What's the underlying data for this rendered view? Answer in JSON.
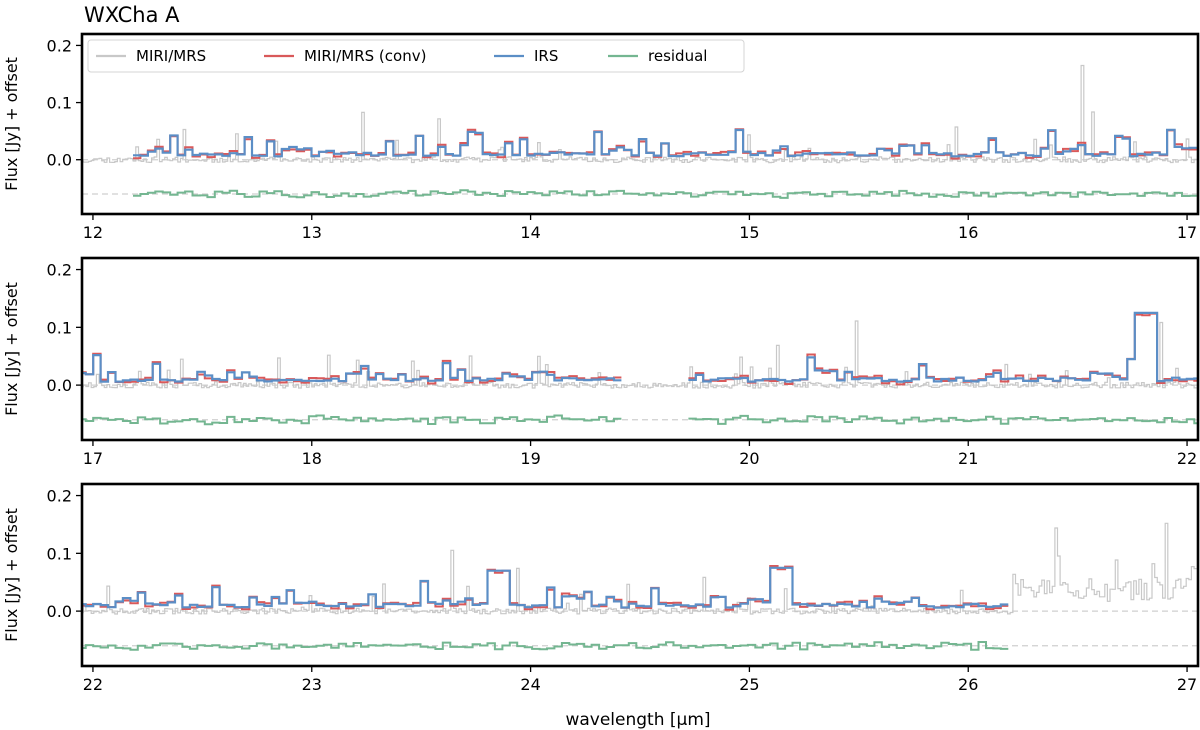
{
  "chart_data": {
    "type": "line",
    "title": "WXCha A",
    "xlabel": "wavelength [μm]",
    "ylabel": "Flux [Jy] + offset",
    "residual_offset": -0.06,
    "legend": {
      "placement": "top-left",
      "entries": [
        {
          "label": "MIRI/MRS",
          "color": "#c8c8c8"
        },
        {
          "label": "MIRI/MRS (conv)",
          "color": "#d9595a"
        },
        {
          "label": "IRS",
          "color": "#5b8ec6"
        },
        {
          "label": "residual",
          "color": "#74b691"
        }
      ]
    },
    "panels": [
      {
        "xlim": [
          11.95,
          17.05
        ],
        "ylim": [
          -0.095,
          0.22
        ],
        "xticks": [
          12,
          13,
          14,
          15,
          16,
          17
        ],
        "yticks": [
          0.0,
          0.1,
          0.2
        ],
        "ytick_labels": [
          "0.0",
          "0.1",
          "0.2"
        ],
        "miri_range": [
          11.95,
          17.05
        ],
        "irs_range": [
          12.2,
          17.05
        ],
        "gap": null,
        "seed": 11,
        "peak_x": [],
        "peak_y": []
      },
      {
        "xlim": [
          16.95,
          22.05
        ],
        "ylim": [
          -0.095,
          0.22
        ],
        "xticks": [
          17,
          18,
          19,
          20,
          21,
          22
        ],
        "yticks": [
          0.0,
          0.1,
          0.2
        ],
        "ytick_labels": [
          "0.0",
          "0.1",
          "0.2"
        ],
        "miri_range": [
          16.95,
          22.05
        ],
        "irs_range": [
          16.95,
          22.05
        ],
        "gap": [
          19.4,
          19.73
        ],
        "seed": 23,
        "peak_x": [
          21.82
        ],
        "peak_y": [
          0.125
        ]
      },
      {
        "xlim": [
          21.95,
          27.05
        ],
        "ylim": [
          -0.095,
          0.22
        ],
        "xticks": [
          22,
          23,
          24,
          25,
          26,
          27
        ],
        "yticks": [
          0.0,
          0.1,
          0.2
        ],
        "ytick_labels": [
          "0.0",
          "0.1",
          "0.2"
        ],
        "miri_range": [
          21.95,
          27.05
        ],
        "irs_range": [
          21.95,
          26.18
        ],
        "gap": null,
        "seed": 37,
        "peak_x": [
          23.85,
          25.15
        ],
        "peak_y": [
          0.07,
          0.075
        ]
      }
    ]
  }
}
